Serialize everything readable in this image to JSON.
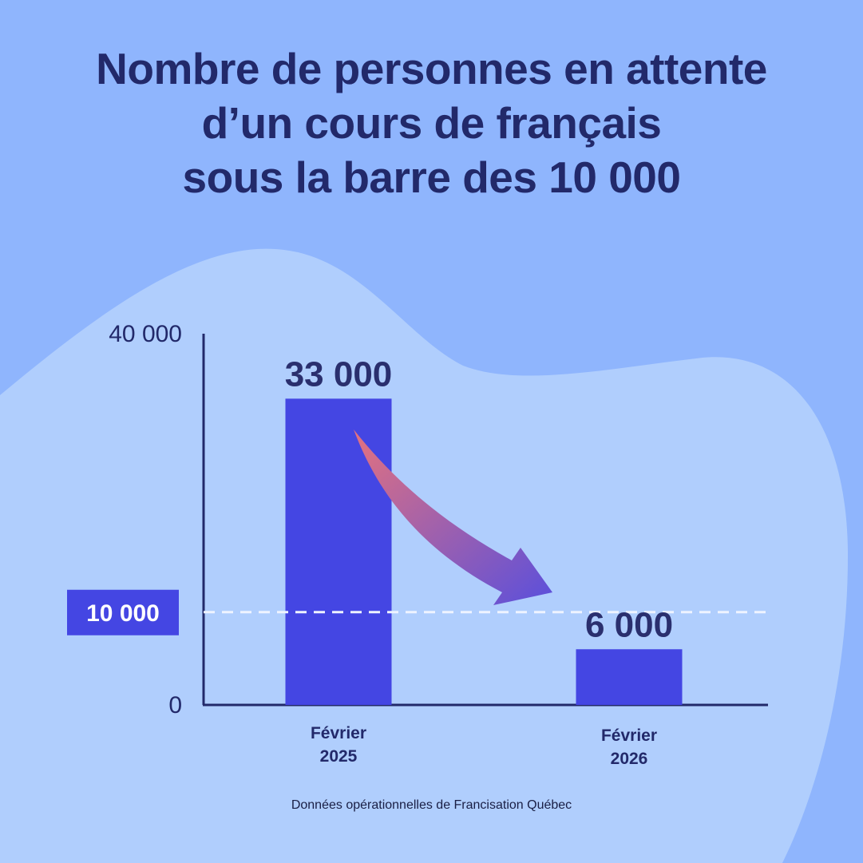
{
  "title_lines": [
    "Nombre de personnes en attente",
    "d’un cours de français",
    "sous la barre des 10 000"
  ],
  "source": "Données opérationnelles de Francisation Québec",
  "colors": {
    "background": "#8fb5fd",
    "blob": "#b0cefd",
    "bar": "#4446e3",
    "text": "#22296a",
    "arrow_start": "#e4727e",
    "arrow_end": "#5a4fdc",
    "reference_line": "#eef3ff"
  },
  "chart_data": {
    "type": "bar",
    "title": "Nombre de personnes en attente d’un cours de français sous la barre des 10 000",
    "categories": [
      [
        "Février",
        "2025"
      ],
      [
        "Février",
        "2026"
      ]
    ],
    "values": [
      33000,
      6000
    ],
    "value_labels": [
      "33 000",
      "6 000"
    ],
    "ylim": [
      0,
      40000
    ],
    "yticks": [
      {
        "value": 0,
        "label": "0"
      },
      {
        "value": 40000,
        "label": "40 000"
      }
    ],
    "reference_line": {
      "value": 10000,
      "label": "10 000",
      "style": "dashed"
    },
    "annotation": "curved arrow from first bar to second bar",
    "grid": false,
    "legend": "none"
  }
}
